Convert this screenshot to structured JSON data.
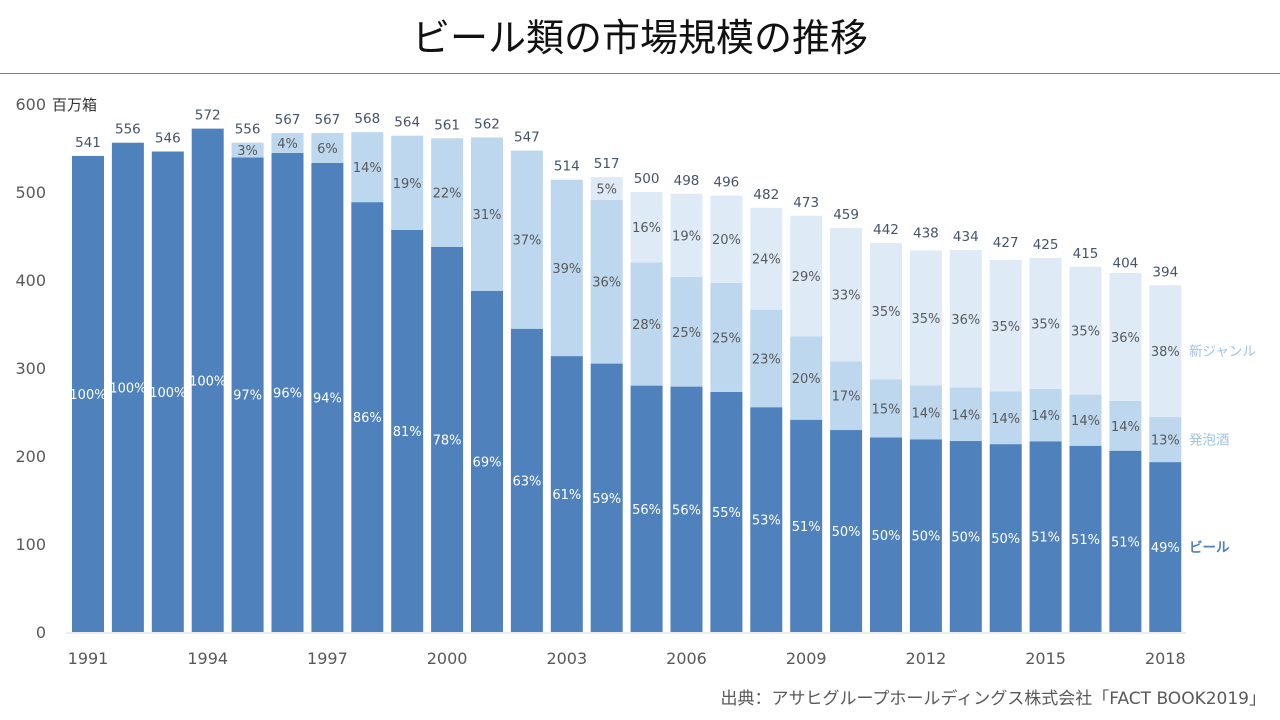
{
  "title": "ビール類の市場規模の推移",
  "source": "出典：アサヒグループホールディングス株式会社「FACT BOOK2019」",
  "chart_data": {
    "type": "bar",
    "stacked": true,
    "ylabel": "百万箱",
    "ylim": [
      0,
      600
    ],
    "yticks": [
      0,
      100,
      200,
      300,
      400,
      500,
      600
    ],
    "xtick_labels": [
      "1991",
      "1994",
      "1997",
      "2000",
      "2003",
      "2006",
      "2009",
      "2012",
      "2015",
      "2018"
    ],
    "grid": false,
    "legend_placement": "right (inline labels)",
    "categories": [
      "1991",
      "1992",
      "1993",
      "1994",
      "1995",
      "1996",
      "1997",
      "1998",
      "1999",
      "2000",
      "2001",
      "2002",
      "2003",
      "2004",
      "2005",
      "2006",
      "2007",
      "2008",
      "2009",
      "2010",
      "2011",
      "2012",
      "2013",
      "2014",
      "2015",
      "2016",
      "2017",
      "2018"
    ],
    "totals": [
      541,
      556,
      546,
      572,
      556,
      567,
      567,
      568,
      564,
      561,
      562,
      547,
      514,
      517,
      500,
      498,
      496,
      482,
      473,
      459,
      442,
      438,
      434,
      427,
      425,
      415,
      404,
      394
    ],
    "series": [
      {
        "name": "ビール",
        "color": "#4f81bd",
        "label_color": "#ffffff",
        "percent": [
          100,
          100,
          100,
          100,
          97,
          96,
          94,
          86,
          81,
          78,
          69,
          63,
          61,
          59,
          56,
          56,
          55,
          53,
          51,
          50,
          50,
          50,
          50,
          50,
          51,
          51,
          51,
          49
        ]
      },
      {
        "name": "発泡酒",
        "color": "#bdd7ee",
        "label_color": "#595959",
        "percent": [
          0,
          0,
          0,
          0,
          3,
          4,
          6,
          14,
          19,
          22,
          31,
          37,
          39,
          36,
          28,
          25,
          25,
          23,
          20,
          17,
          15,
          14,
          14,
          14,
          14,
          14,
          14,
          13
        ]
      },
      {
        "name": "新ジャンル",
        "color": "#deebf7",
        "label_color": "#595959",
        "percent": [
          0,
          0,
          0,
          0,
          0,
          0,
          0,
          0,
          0,
          0,
          0,
          0,
          0,
          5,
          16,
          19,
          20,
          24,
          29,
          33,
          35,
          35,
          36,
          35,
          35,
          35,
          36,
          38
        ]
      }
    ],
    "legend_colors": [
      "#4f81bd",
      "#9dc3e6",
      "#9dc3e6"
    ],
    "total_label_color": "#44546a"
  }
}
